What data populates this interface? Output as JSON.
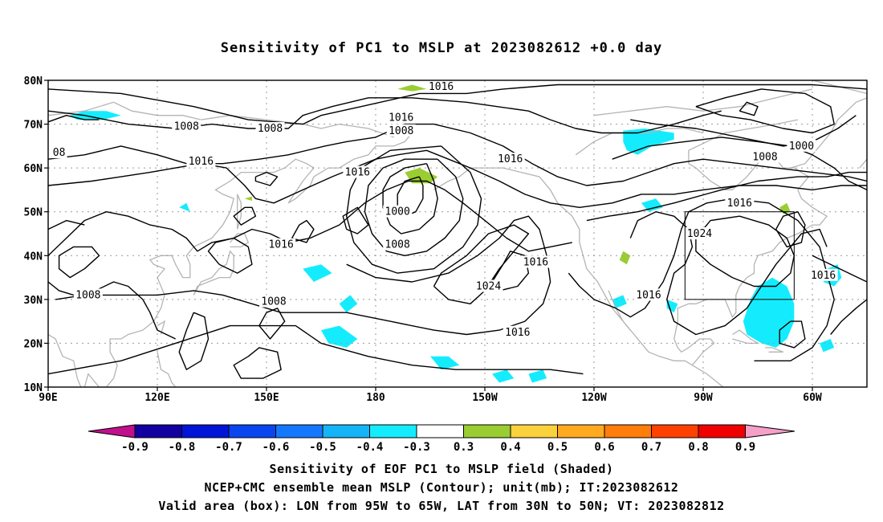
{
  "title": "Sensitivity of PC1 to MSLP at 2023082612 +0.0 day",
  "lat_labels": [
    "80N",
    "70N",
    "60N",
    "50N",
    "40N",
    "30N",
    "20N",
    "10N"
  ],
  "lon_labels": [
    "90E",
    "120E",
    "150E",
    "180",
    "150W",
    "120W",
    "90W",
    "60W"
  ],
  "contour_labels": [
    {
      "text": "1016",
      "lon": -162,
      "lat": 78.5
    },
    {
      "text": "1016",
      "lon": -173,
      "lat": 71.5
    },
    {
      "text": "1008",
      "lon": -173,
      "lat": 68.5
    },
    {
      "text": "1008",
      "lon": 128,
      "lat": 69.5
    },
    {
      "text": "1008",
      "lon": 151,
      "lat": 69.0
    },
    {
      "text": "08",
      "lon": 93,
      "lat": 63.5
    },
    {
      "text": "1016",
      "lon": 132,
      "lat": 61.5
    },
    {
      "text": "1016",
      "lon": 175,
      "lat": 59.0
    },
    {
      "text": "1016",
      "lon": -143,
      "lat": 62.0
    },
    {
      "text": "1000",
      "lon": -174,
      "lat": 50.0
    },
    {
      "text": "1008",
      "lon": -174,
      "lat": 42.5
    },
    {
      "text": "1016",
      "lon": 154,
      "lat": 42.5
    },
    {
      "text": "1024",
      "lon": -149,
      "lat": 33.0
    },
    {
      "text": "1016",
      "lon": -136,
      "lat": 38.5
    },
    {
      "text": "1016",
      "lon": -105,
      "lat": 31.0
    },
    {
      "text": "1016",
      "lon": -141,
      "lat": 22.5
    },
    {
      "text": "1008",
      "lon": 101,
      "lat": 31.0
    },
    {
      "text": "1008",
      "lon": 152,
      "lat": 29.5
    },
    {
      "text": "1024",
      "lon": -91,
      "lat": 45.0
    },
    {
      "text": "1016",
      "lon": -80,
      "lat": 52.0
    },
    {
      "text": "1008",
      "lon": -73,
      "lat": 62.5
    },
    {
      "text": "1000",
      "lon": -63,
      "lat": 65.0
    },
    {
      "text": "1016",
      "lon": -57,
      "lat": 35.5
    }
  ],
  "colorbar": {
    "labels": [
      "-0.9",
      "-0.8",
      "-0.7",
      "-0.6",
      "-0.5",
      "-0.4",
      "-0.3",
      "0.3",
      "0.4",
      "0.5",
      "0.6",
      "0.7",
      "0.8",
      "0.9"
    ],
    "colors": [
      "#1200a0",
      "#0015d8",
      "#0a46f0",
      "#1478ff",
      "#15b4f8",
      "#14ecfe",
      "#ffffff",
      "#9acd32",
      "#fcd23c",
      "#ffaa1e",
      "#ff7d0a",
      "#ff4100",
      "#f00000"
    ],
    "low_color": "#c0118c",
    "high_color": "#f5a0c8"
  },
  "valid_box": {
    "lon_min": -95,
    "lon_max": -65,
    "lat_min": 30,
    "lat_max": 50
  },
  "caption": {
    "line1": "Sensitivity of EOF PC1 to MSLP field (Shaded)",
    "line2": "NCEP+CMC ensemble mean MSLP (Contour); unit(mb); IT:2023082612",
    "line3": "Valid area (box): LON from 95W to 65W, LAT from 30N to 50N; VT: 2023082812"
  }
}
